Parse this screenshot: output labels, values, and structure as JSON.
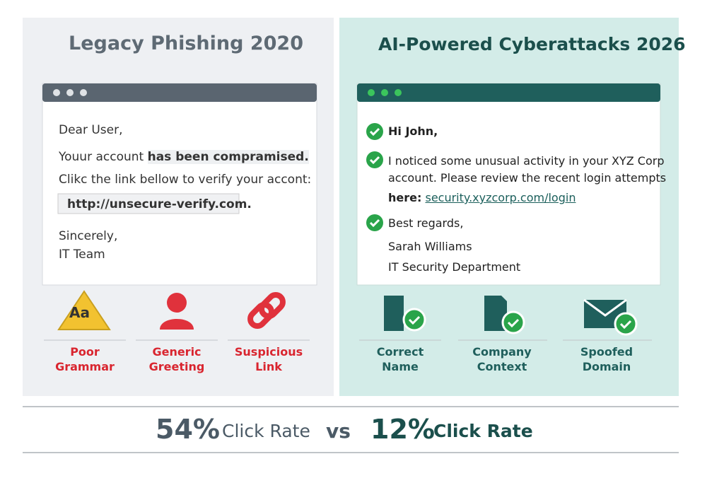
{
  "left": {
    "title": "Legacy Phishing 2020",
    "email": {
      "greeting": "Dear User,",
      "line1_a": "Youur account",
      "line1_b": "has been compramised.",
      "line2": "Clikc the link bellow to verify your accont:",
      "link": "http://unsecure-verify.com.",
      "signoff": "Sincerely,",
      "signature": "IT Team"
    },
    "icon_text": "Aa",
    "flags": [
      "Poor Grammar",
      "Generic Greeting",
      "Suspicious Link"
    ]
  },
  "right": {
    "title": "AI-Powered Cyberattacks 2026",
    "email": {
      "greeting": "Hi John,",
      "line1": "I noticed some unusual activity in your XYZ Corp",
      "line2": "account. Please review the recent login attempts",
      "here": "here:",
      "link": "security.xyzcorp.com/login",
      "signoff": "Best regards,",
      "name": "Sarah Williams",
      "department": "IT Security Department"
    },
    "flags": [
      "Correct Name",
      "Company Context",
      "Spoofed Domain"
    ]
  },
  "footer": {
    "left_value": "54%",
    "left_label": "Click Rate",
    "vs": "vs",
    "right_value": "12%",
    "right_label": "Click Rate"
  }
}
